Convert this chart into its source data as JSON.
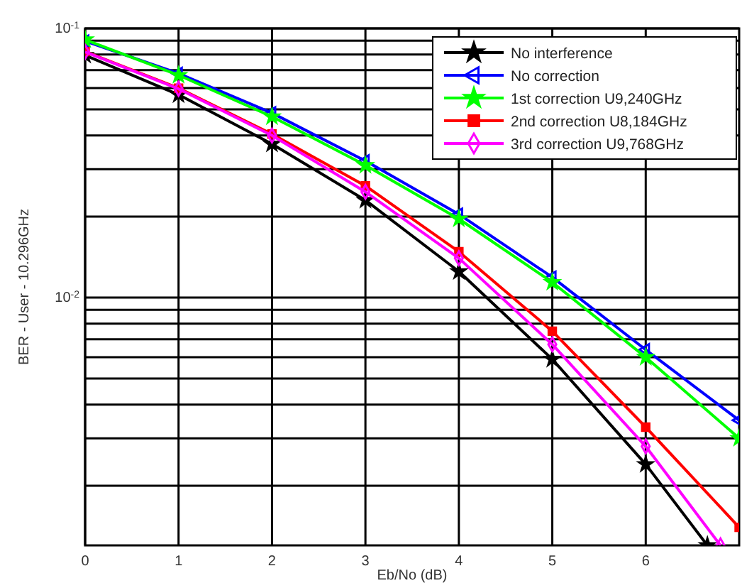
{
  "chart_data": {
    "type": "line",
    "xlabel": "Eb/No (dB)",
    "ylabel": "BER - User - 10.296GHz",
    "log": "y",
    "grid": true,
    "legend": "top right",
    "line_style": "solid",
    "xlim": [
      0,
      7
    ],
    "xticks": [
      0,
      1,
      2,
      3,
      4,
      5,
      6
    ],
    "ylim": [
      0.0012,
      0.1
    ],
    "yticks": [
      {
        "value": 0.002,
        "label": null
      },
      {
        "value": 0.003,
        "label": null
      },
      {
        "value": 0.004,
        "label": null
      },
      {
        "value": 0.005,
        "label": null
      },
      {
        "value": 0.006,
        "label": null
      },
      {
        "value": 0.007,
        "label": null
      },
      {
        "value": 0.008,
        "label": null
      },
      {
        "value": 0.009,
        "label": null
      },
      {
        "value": 0.01,
        "label": "10$^{-2}$"
      },
      {
        "value": 0.02,
        "label": null
      },
      {
        "value": 0.03,
        "label": null
      },
      {
        "value": 0.04,
        "label": null
      },
      {
        "value": 0.05,
        "label": null
      },
      {
        "value": 0.06,
        "label": null
      },
      {
        "value": 0.07,
        "label": null
      },
      {
        "value": 0.08,
        "label": null
      },
      {
        "value": 0.09,
        "label": null
      },
      {
        "value": 0.1,
        "label": "10$^{-1}$"
      }
    ],
    "series": [
      {
        "name": "No interference",
        "color": "#000000",
        "marker": "star",
        "x": [
          0,
          1,
          2,
          3,
          4,
          5,
          6,
          6.66
        ],
        "values": [
          0.0795,
          0.0567,
          0.0372,
          0.023,
          0.0125,
          0.0059,
          0.0024,
          0.0012
        ]
      },
      {
        "name": "No correction",
        "color": "#0000ff",
        "marker": "triangle",
        "x": [
          0,
          1,
          2,
          3,
          4,
          5,
          6,
          7
        ],
        "values": [
          0.0897,
          0.068,
          0.0485,
          0.0322,
          0.0204,
          0.0119,
          0.0064,
          0.0035
        ]
      },
      {
        "name": "1st correction U9,240GHz",
        "color": "#00ff00",
        "marker": "star",
        "x": [
          0,
          1,
          2,
          3,
          4,
          5,
          6,
          7
        ],
        "values": [
          0.0908,
          0.067,
          0.047,
          0.031,
          0.0196,
          0.0114,
          0.006,
          0.003
        ]
      },
      {
        "name": "2nd correction U8,184GHz",
        "color": "#ff0000",
        "marker": "square",
        "x": [
          0,
          1,
          2,
          3,
          4,
          5,
          6,
          7
        ],
        "values": [
          0.082,
          0.06,
          0.0405,
          0.026,
          0.0148,
          0.0075,
          0.0033,
          0.0014
        ]
      },
      {
        "name": "3rd correction U9,768GHz",
        "color": "#ff00ff",
        "marker": "diamond",
        "x": [
          0,
          1,
          2,
          3,
          4,
          5,
          6,
          6.8
        ],
        "values": [
          0.0818,
          0.0596,
          0.04,
          0.0247,
          0.014,
          0.0067,
          0.0028,
          0.0012
        ]
      }
    ]
  }
}
